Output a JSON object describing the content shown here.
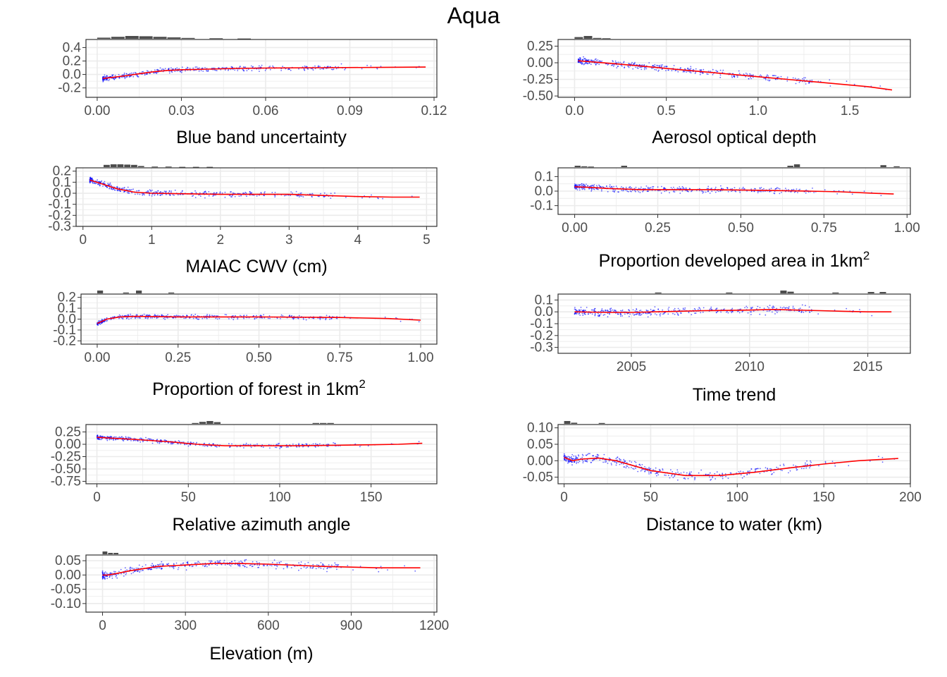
{
  "title": "Aqua",
  "colors": {
    "points": "#0000ff",
    "smooth": "#ff0000",
    "rug": "#4d4d4d",
    "grid": "#ebebeb",
    "panel_border": "#333333"
  },
  "chart_data": [
    {
      "type": "scatter",
      "xlabel": "Blue band uncertainty",
      "xlabel_sup": "",
      "xlim": [
        -0.004,
        0.121
      ],
      "ylim": [
        -0.34,
        0.52
      ],
      "xticks": [
        0.0,
        0.03,
        0.06,
        0.09,
        0.12
      ],
      "xtick_labels": [
        "0.00",
        "0.03",
        "0.06",
        "0.09",
        "0.12"
      ],
      "yticks": [
        -0.2,
        0.0,
        0.2,
        0.4
      ],
      "ytick_labels": [
        "-0.2",
        "0.0",
        "0.2",
        "0.4"
      ],
      "smooth": {
        "x": [
          0.002,
          0.006,
          0.01,
          0.015,
          0.02,
          0.025,
          0.03,
          0.04,
          0.05,
          0.06,
          0.08,
          0.1,
          0.117
        ],
        "y": [
          -0.06,
          -0.04,
          -0.02,
          0.01,
          0.04,
          0.06,
          0.07,
          0.08,
          0.09,
          0.095,
          0.1,
          0.105,
          0.11
        ]
      },
      "scatter_spread": 0.06,
      "rug_bins": [
        0.0,
        0.005,
        0.01,
        0.015,
        0.02,
        0.025,
        0.03,
        0.04,
        0.05
      ],
      "rug_bin_width": 0.005,
      "rug_heights": [
        0.4,
        0.7,
        1.0,
        0.9,
        0.7,
        0.5,
        0.3,
        0.2,
        0.1
      ]
    },
    {
      "type": "scatter",
      "xlabel": "Aerosol optical depth",
      "xlabel_sup": "",
      "xlim": [
        -0.09,
        1.83
      ],
      "ylim": [
        -0.52,
        0.35
      ],
      "xticks": [
        0.0,
        0.5,
        1.0,
        1.5
      ],
      "xtick_labels": [
        "0.0",
        "0.5",
        "1.0",
        "1.5"
      ],
      "yticks": [
        -0.5,
        -0.25,
        0.0,
        0.25
      ],
      "ytick_labels": [
        "-0.50",
        "-0.25",
        "0.00",
        "0.25"
      ],
      "smooth": {
        "x": [
          0.02,
          0.2,
          0.4,
          0.6,
          0.8,
          1.0,
          1.2,
          1.4,
          1.6,
          1.73
        ],
        "y": [
          0.03,
          -0.01,
          -0.06,
          -0.11,
          -0.16,
          -0.21,
          -0.26,
          -0.31,
          -0.36,
          -0.41
        ]
      },
      "scatter_spread": 0.07,
      "rug_bins": [
        0.0,
        0.05,
        0.1,
        0.15
      ],
      "rug_bin_width": 0.05,
      "rug_heights": [
        0.6,
        1.0,
        0.3,
        0.2
      ]
    },
    {
      "type": "scatter",
      "xlabel": "MAIAC CWV (cm)",
      "xlabel_sup": "",
      "xlim": [
        -0.1,
        5.15
      ],
      "ylim": [
        -0.3,
        0.23
      ],
      "xticks": [
        0,
        1,
        2,
        3,
        4,
        5
      ],
      "xtick_labels": [
        "0",
        "1",
        "2",
        "3",
        "4",
        "5"
      ],
      "yticks": [
        -0.3,
        -0.2,
        -0.1,
        0.0,
        0.1,
        0.2
      ],
      "ytick_labels": [
        "-0.3",
        "-0.2",
        "-0.1",
        "0.0",
        "0.1",
        "0.2"
      ],
      "smooth": {
        "x": [
          0.1,
          0.3,
          0.5,
          0.75,
          1.0,
          1.5,
          2.0,
          2.5,
          3.0,
          3.5,
          4.0,
          4.5,
          4.9
        ],
        "y": [
          0.12,
          0.08,
          0.04,
          0.01,
          0.0,
          -0.005,
          -0.01,
          -0.01,
          -0.01,
          -0.02,
          -0.03,
          -0.035,
          -0.035
        ]
      },
      "scatter_spread": 0.04,
      "rug_bins": [
        0.3,
        0.4,
        0.5,
        0.6,
        0.7,
        0.8,
        1.0,
        1.2,
        1.4,
        1.6,
        1.8
      ],
      "rug_bin_width": 0.1,
      "rug_heights": [
        0.8,
        1.0,
        1.0,
        0.9,
        0.8,
        0.4,
        0.2,
        0.2,
        0.1,
        0.1,
        0.1
      ]
    },
    {
      "type": "scatter",
      "xlabel": "Proportion developed area in 1km",
      "xlabel_sup": "2",
      "xlim": [
        -0.05,
        1.01
      ],
      "ylim": [
        -0.16,
        0.16
      ],
      "xticks": [
        0.0,
        0.25,
        0.5,
        0.75,
        1.0
      ],
      "xtick_labels": [
        "0.00",
        "0.25",
        "0.50",
        "0.75",
        "1.00"
      ],
      "yticks": [
        -0.1,
        0.0,
        0.1
      ],
      "ytick_labels": [
        "-0.1",
        "0.0",
        "0.1"
      ],
      "smooth": {
        "x": [
          0.0,
          0.05,
          0.1,
          0.2,
          0.3,
          0.4,
          0.5,
          0.6,
          0.7,
          0.8,
          0.9,
          0.96
        ],
        "y": [
          0.03,
          0.025,
          0.018,
          0.01,
          0.01,
          0.01,
          0.008,
          0.004,
          0.0,
          -0.005,
          -0.015,
          -0.02
        ]
      },
      "scatter_spread": 0.03,
      "rug_bins": [
        0.0,
        0.02,
        0.04,
        0.14,
        0.64,
        0.66,
        0.92,
        0.96
      ],
      "rug_bin_width": 0.02,
      "rug_heights": [
        0.5,
        0.3,
        0.2,
        0.5,
        0.5,
        1.0,
        0.7,
        0.3
      ]
    },
    {
      "type": "scatter",
      "xlabel": "Proportion of forest in 1km",
      "xlabel_sup": "2",
      "xlim": [
        -0.05,
        1.05
      ],
      "ylim": [
        -0.23,
        0.23
      ],
      "xticks": [
        0.0,
        0.25,
        0.5,
        0.75,
        1.0
      ],
      "xtick_labels": [
        "0.00",
        "0.25",
        "0.50",
        "0.75",
        "1.00"
      ],
      "yticks": [
        -0.2,
        -0.1,
        0.0,
        0.1,
        0.2
      ],
      "ytick_labels": [
        "-0.2",
        "-0.1",
        "0.0",
        "0.1",
        "0.2"
      ],
      "smooth": {
        "x": [
          0.0,
          0.03,
          0.07,
          0.12,
          0.25,
          0.5,
          0.75,
          0.9,
          1.0
        ],
        "y": [
          -0.04,
          0.0,
          0.02,
          0.025,
          0.02,
          0.02,
          0.015,
          0.005,
          -0.01
        ]
      },
      "scatter_spread": 0.03,
      "rug_bins": [
        0.0,
        0.08,
        0.12,
        0.22
      ],
      "rug_bin_width": 0.02,
      "rug_heights": [
        1.0,
        0.3,
        1.0,
        0.3
      ]
    },
    {
      "type": "scatter",
      "xlabel": "Time trend",
      "xlabel_sup": "",
      "xlim": [
        2001.9,
        2016.8
      ],
      "ylim": [
        -0.35,
        0.15
      ],
      "xticks": [
        2005,
        2010,
        2015
      ],
      "xtick_labels": [
        "2005",
        "2010",
        "2015"
      ],
      "yticks": [
        -0.3,
        -0.2,
        -0.1,
        0.0,
        0.1
      ],
      "ytick_labels": [
        "-0.3",
        "-0.2",
        "-0.1",
        "0.0",
        "0.1"
      ],
      "smooth": {
        "x": [
          2002.6,
          2004,
          2005,
          2006,
          2007,
          2008,
          2009,
          2010,
          2011,
          2012,
          2013,
          2014,
          2015,
          2016
        ],
        "y": [
          0.0,
          -0.005,
          -0.005,
          0.0,
          0.005,
          0.01,
          0.012,
          0.015,
          0.02,
          0.015,
          0.01,
          0.005,
          0.0,
          0.0
        ]
      },
      "scatter_spread": 0.05,
      "rug_bins": [
        2006,
        2009,
        2011.3,
        2011.6,
        2013.5,
        2015,
        2015.5
      ],
      "rug_bin_width": 0.3,
      "rug_heights": [
        0.3,
        0.3,
        1.0,
        0.6,
        0.3,
        0.5,
        0.5
      ]
    },
    {
      "type": "scatter",
      "xlabel": "Relative azimuth angle",
      "xlabel_sup": "",
      "xlim": [
        -6,
        186
      ],
      "ylim": [
        -0.8,
        0.4
      ],
      "xticks": [
        0,
        50,
        100,
        150
      ],
      "xtick_labels": [
        "0",
        "50",
        "100",
        "150"
      ],
      "yticks": [
        -0.75,
        -0.5,
        -0.25,
        0.0,
        0.25
      ],
      "ytick_labels": [
        "-0.75",
        "-0.50",
        "-0.25",
        "0.00",
        "0.25"
      ],
      "smooth": {
        "x": [
          0,
          20,
          40,
          55,
          70,
          90,
          110,
          130,
          150,
          165,
          178
        ],
        "y": [
          0.14,
          0.1,
          0.05,
          0.0,
          -0.03,
          -0.03,
          -0.03,
          -0.02,
          -0.01,
          0.0,
          0.02
        ]
      },
      "scatter_spread": 0.06,
      "rug_bins": [
        52,
        56,
        60,
        64,
        118,
        122,
        126
      ],
      "rug_bin_width": 4,
      "rug_heights": [
        0.3,
        0.7,
        1.0,
        0.6,
        0.3,
        0.3,
        0.3
      ]
    },
    {
      "type": "scatter",
      "xlabel": "Distance to water (km)",
      "xlabel_sup": "",
      "xlim": [
        -3.5,
        200
      ],
      "ylim": [
        -0.07,
        0.11
      ],
      "xticks": [
        0,
        50,
        100,
        150,
        200
      ],
      "xtick_labels": [
        "0",
        "50",
        "100",
        "150",
        "200"
      ],
      "yticks": [
        -0.05,
        0.0,
        0.05,
        0.1
      ],
      "ytick_labels": [
        "-0.05",
        "0.00",
        "0.05",
        "0.10"
      ],
      "smooth": {
        "x": [
          0,
          5,
          10,
          20,
          30,
          50,
          70,
          90,
          110,
          130,
          150,
          170,
          193
        ],
        "y": [
          0.01,
          0.0,
          0.005,
          0.008,
          0.0,
          -0.03,
          -0.045,
          -0.045,
          -0.035,
          -0.022,
          -0.01,
          0.0,
          0.007
        ]
      },
      "scatter_spread": 0.02,
      "rug_bins": [
        0,
        4,
        20
      ],
      "rug_bin_width": 4,
      "rug_heights": [
        1.0,
        0.4,
        0.3
      ]
    },
    {
      "type": "scatter",
      "xlabel": "Elevation (m)",
      "xlabel_sup": "",
      "xlim": [
        -60,
        1210
      ],
      "ylim": [
        -0.13,
        0.07
      ],
      "xticks": [
        0,
        300,
        600,
        900,
        1200
      ],
      "xtick_labels": [
        "0",
        "300",
        "600",
        "900",
        "1200"
      ],
      "yticks": [
        -0.1,
        -0.05,
        0.0,
        0.05
      ],
      "ytick_labels": [
        "-0.10",
        "-0.05",
        "0.00",
        "0.05"
      ],
      "smooth": {
        "x": [
          0,
          20,
          50,
          100,
          200,
          300,
          400,
          500,
          600,
          800,
          1000,
          1150
        ],
        "y": [
          0.0,
          0.0,
          0.005,
          0.015,
          0.03,
          0.035,
          0.04,
          0.04,
          0.038,
          0.03,
          0.025,
          0.025
        ]
      },
      "scatter_spread": 0.02,
      "rug_bins": [
        0,
        20,
        40
      ],
      "rug_bin_width": 20,
      "rug_heights": [
        1.0,
        0.5,
        0.5
      ]
    }
  ]
}
